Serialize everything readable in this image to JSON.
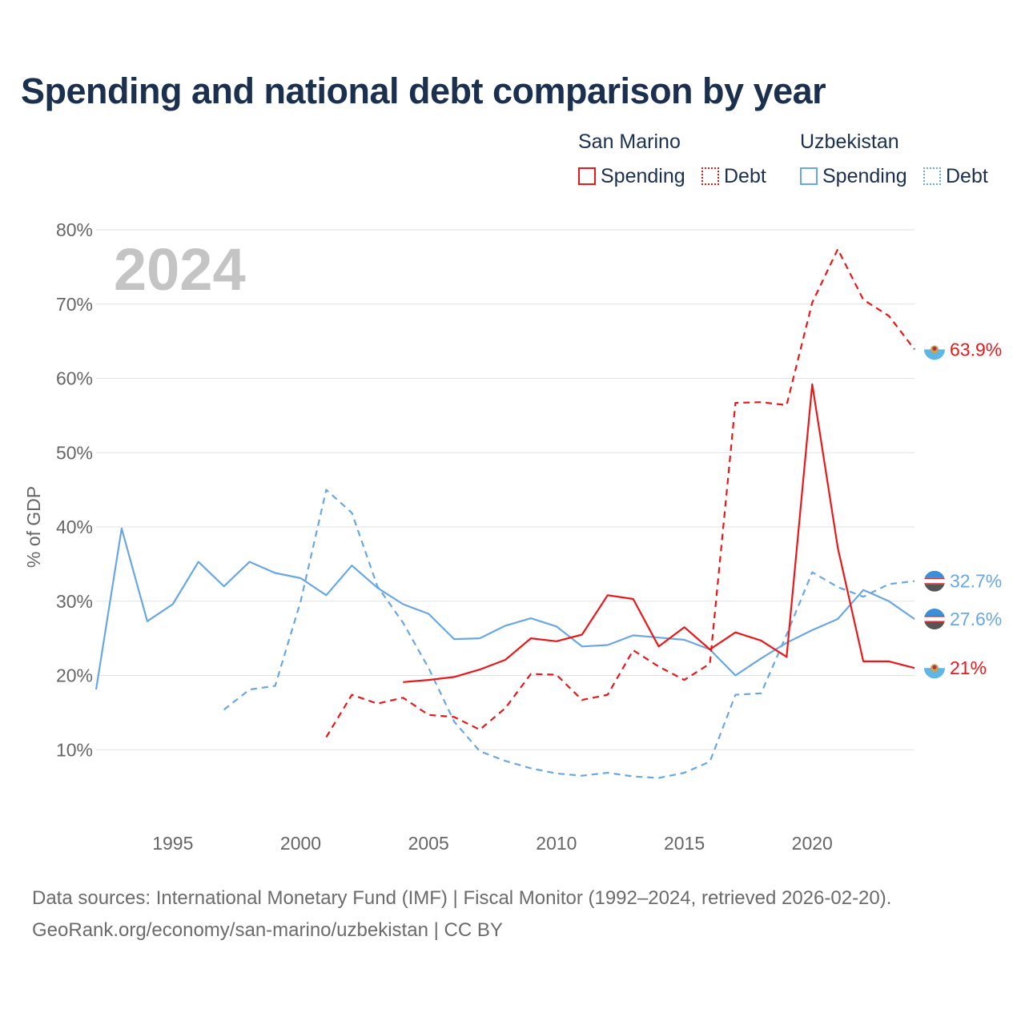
{
  "title": "Spending and national debt comparison by year",
  "legend": {
    "groups": [
      {
        "name": "San Marino",
        "spending_label": "Spending",
        "debt_label": "Debt"
      },
      {
        "name": "Uzbekistan",
        "spending_label": "Spending",
        "debt_label": "Debt"
      }
    ]
  },
  "colors": {
    "san_marino": "#e8181a",
    "uzbekistan": "#6aa7e2",
    "year_watermark": "#c4c4c4"
  },
  "source": {
    "line1": "Data sources: International Monetary Fund (IMF) | Fiscal Monitor (1992–2024, retrieved 2026-02-20).",
    "line2": "GeoRank.org/economy/san-marino/uzbekistan | CC BY"
  },
  "chart_data": {
    "type": "line",
    "title": "Spending and national debt comparison by year",
    "year_watermark": "2024",
    "xlabel": "",
    "ylabel": "% of GDP",
    "xlim": [
      1992,
      2024
    ],
    "ylim": [
      0,
      80
    ],
    "x_ticks": [
      1995,
      2000,
      2005,
      2010,
      2015,
      2020
    ],
    "y_ticks": [
      10,
      20,
      30,
      40,
      50,
      60,
      70,
      80
    ],
    "y_tick_labels": [
      "10%",
      "20%",
      "30%",
      "40%",
      "50%",
      "60%",
      "70%",
      "80%"
    ],
    "grid": true,
    "series": [
      {
        "name": "Uzbekistan Spending",
        "country": "uzbekistan",
        "style": "solid",
        "end_label": "27.6%",
        "points": [
          [
            1992,
            18.1
          ],
          [
            1993,
            39.8
          ],
          [
            1994,
            27.3
          ],
          [
            1995,
            29.6
          ],
          [
            1996,
            35.3
          ],
          [
            1997,
            32.0
          ],
          [
            1998,
            35.3
          ],
          [
            1999,
            33.8
          ],
          [
            2000,
            33.1
          ],
          [
            2001,
            30.8
          ],
          [
            2002,
            34.8
          ],
          [
            2003,
            31.8
          ],
          [
            2004,
            29.6
          ],
          [
            2005,
            28.3
          ],
          [
            2006,
            24.9
          ],
          [
            2007,
            25.0
          ],
          [
            2008,
            26.7
          ],
          [
            2009,
            27.7
          ],
          [
            2010,
            26.6
          ],
          [
            2011,
            23.9
          ],
          [
            2012,
            24.1
          ],
          [
            2013,
            25.4
          ],
          [
            2014,
            25.1
          ],
          [
            2015,
            24.8
          ],
          [
            2016,
            23.5
          ],
          [
            2017,
            20.0
          ],
          [
            2018,
            22.3
          ],
          [
            2019,
            24.4
          ],
          [
            2020,
            26.1
          ],
          [
            2021,
            27.6
          ],
          [
            2022,
            31.5
          ],
          [
            2023,
            30.0
          ],
          [
            2024,
            27.6
          ]
        ]
      },
      {
        "name": "Uzbekistan Debt",
        "country": "uzbekistan",
        "style": "dashed",
        "end_label": "32.7%",
        "points": [
          [
            1997,
            15.4
          ],
          [
            1998,
            18.1
          ],
          [
            1999,
            18.6
          ],
          [
            2000,
            30.0
          ],
          [
            2001,
            45.0
          ],
          [
            2002,
            41.9
          ],
          [
            2003,
            32.0
          ],
          [
            2004,
            27.1
          ],
          [
            2005,
            21.0
          ],
          [
            2006,
            13.8
          ],
          [
            2007,
            9.8
          ],
          [
            2008,
            8.5
          ],
          [
            2009,
            7.5
          ],
          [
            2010,
            6.8
          ],
          [
            2011,
            6.5
          ],
          [
            2012,
            6.9
          ],
          [
            2013,
            6.4
          ],
          [
            2014,
            6.2
          ],
          [
            2015,
            6.9
          ],
          [
            2016,
            8.4
          ],
          [
            2017,
            17.4
          ],
          [
            2018,
            17.6
          ],
          [
            2019,
            25.5
          ],
          [
            2020,
            33.9
          ],
          [
            2021,
            31.9
          ],
          [
            2022,
            30.6
          ],
          [
            2023,
            32.3
          ],
          [
            2024,
            32.7
          ]
        ]
      },
      {
        "name": "San Marino Spending",
        "country": "san_marino",
        "style": "solid",
        "end_label": "21%",
        "points": [
          [
            2004,
            19.1
          ],
          [
            2005,
            19.4
          ],
          [
            2006,
            19.8
          ],
          [
            2007,
            20.8
          ],
          [
            2008,
            22.1
          ],
          [
            2009,
            25.0
          ],
          [
            2010,
            24.6
          ],
          [
            2011,
            25.5
          ],
          [
            2012,
            30.8
          ],
          [
            2013,
            30.3
          ],
          [
            2014,
            23.9
          ],
          [
            2015,
            26.5
          ],
          [
            2016,
            23.5
          ],
          [
            2017,
            25.8
          ],
          [
            2018,
            24.7
          ],
          [
            2019,
            22.5
          ],
          [
            2020,
            59.2
          ],
          [
            2021,
            37.2
          ],
          [
            2022,
            21.9
          ],
          [
            2023,
            21.9
          ],
          [
            2024,
            21.0
          ]
        ]
      },
      {
        "name": "San Marino Debt",
        "country": "san_marino",
        "style": "dashed",
        "end_label": "63.9%",
        "points": [
          [
            2001,
            11.7
          ],
          [
            2002,
            17.4
          ],
          [
            2003,
            16.2
          ],
          [
            2004,
            17.0
          ],
          [
            2005,
            14.7
          ],
          [
            2006,
            14.4
          ],
          [
            2007,
            12.7
          ],
          [
            2008,
            15.6
          ],
          [
            2009,
            20.2
          ],
          [
            2010,
            20.1
          ],
          [
            2011,
            16.7
          ],
          [
            2012,
            17.4
          ],
          [
            2013,
            23.4
          ],
          [
            2014,
            21.2
          ],
          [
            2015,
            19.4
          ],
          [
            2016,
            21.6
          ],
          [
            2017,
            56.7
          ],
          [
            2018,
            56.8
          ],
          [
            2019,
            56.4
          ],
          [
            2020,
            70.2
          ],
          [
            2021,
            77.4
          ],
          [
            2022,
            70.6
          ],
          [
            2023,
            68.4
          ],
          [
            2024,
            63.9
          ]
        ]
      }
    ]
  }
}
